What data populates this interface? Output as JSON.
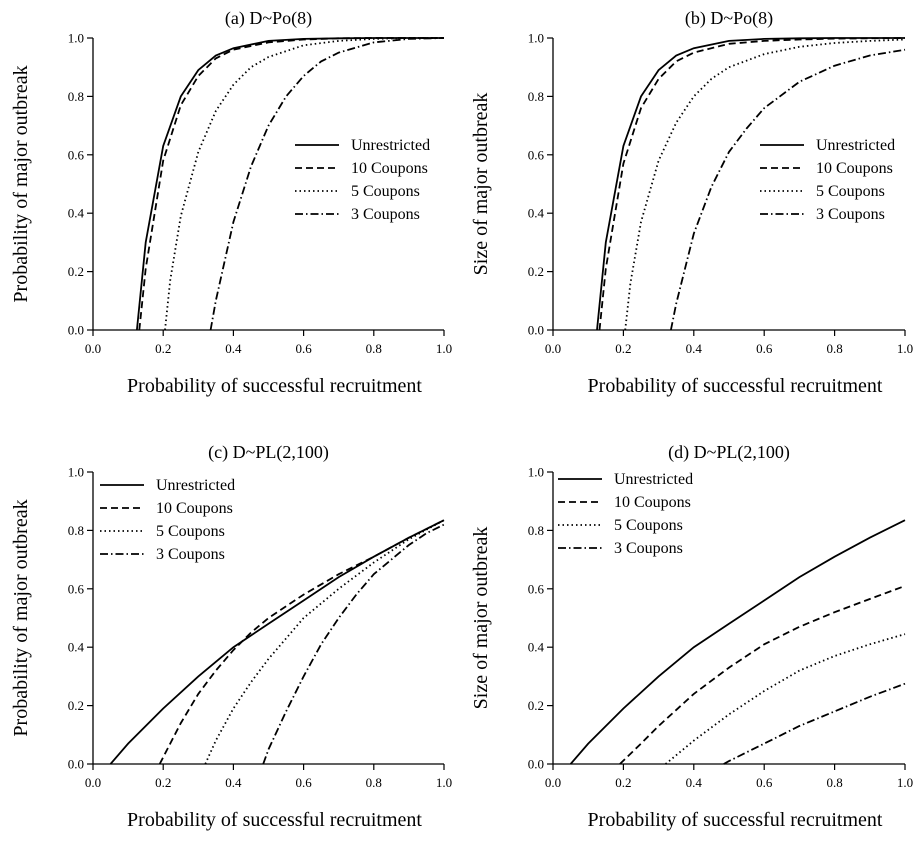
{
  "chart_data": [
    {
      "type": "line",
      "title": "(a) D~Po(8)",
      "xlabel": "Probability of successful recruitment",
      "ylabel": "Probability of major outbreak",
      "xlim": [
        0,
        1
      ],
      "ylim": [
        0,
        1
      ],
      "xticks": [
        "0.0",
        "0.2",
        "0.4",
        "0.6",
        "0.8",
        "1.0"
      ],
      "yticks": [
        "0.0",
        "0.2",
        "0.4",
        "0.6",
        "0.8",
        "1.0"
      ],
      "grid": false,
      "legend": "right",
      "series": [
        {
          "name": "Unrestricted",
          "dash": "solid",
          "x": [
            0.125,
            0.15,
            0.2,
            0.25,
            0.3,
            0.35,
            0.4,
            0.5,
            0.6,
            0.7,
            0.8,
            0.9,
            1.0
          ],
          "y": [
            0,
            0.3,
            0.63,
            0.8,
            0.89,
            0.94,
            0.965,
            0.99,
            0.997,
            0.999,
            1,
            1,
            1
          ]
        },
        {
          "name": "10 Coupons",
          "dash": "dashed",
          "x": [
            0.132,
            0.15,
            0.2,
            0.25,
            0.3,
            0.35,
            0.4,
            0.5,
            0.6,
            0.7,
            0.8,
            0.9,
            1.0
          ],
          "y": [
            0,
            0.21,
            0.58,
            0.77,
            0.87,
            0.93,
            0.96,
            0.985,
            0.995,
            0.999,
            1,
            1,
            1
          ]
        },
        {
          "name": "5 Coupons",
          "dash": "dotted",
          "x": [
            0.205,
            0.22,
            0.25,
            0.3,
            0.35,
            0.4,
            0.45,
            0.5,
            0.6,
            0.7,
            0.8,
            0.9,
            1.0
          ],
          "y": [
            0,
            0.17,
            0.39,
            0.61,
            0.75,
            0.84,
            0.9,
            0.935,
            0.975,
            0.99,
            0.997,
            1,
            1
          ]
        },
        {
          "name": "3 Coupons",
          "dash": "dashdot",
          "x": [
            0.335,
            0.35,
            0.4,
            0.45,
            0.5,
            0.55,
            0.6,
            0.65,
            0.7,
            0.8,
            0.9,
            1.0
          ],
          "y": [
            0,
            0.1,
            0.37,
            0.56,
            0.7,
            0.8,
            0.87,
            0.92,
            0.95,
            0.985,
            0.997,
            1
          ]
        }
      ]
    },
    {
      "type": "line",
      "title": "(b) D~Po(8)",
      "xlabel": "Probability of successful recruitment",
      "ylabel": "Size of major outbreak",
      "xlim": [
        0,
        1
      ],
      "ylim": [
        0,
        1
      ],
      "xticks": [
        "0.0",
        "0.2",
        "0.4",
        "0.6",
        "0.8",
        "1.0"
      ],
      "yticks": [
        "0.0",
        "0.2",
        "0.4",
        "0.6",
        "0.8",
        "1.0"
      ],
      "grid": false,
      "legend": "right",
      "series": [
        {
          "name": "Unrestricted",
          "dash": "solid",
          "x": [
            0.125,
            0.15,
            0.2,
            0.25,
            0.3,
            0.35,
            0.4,
            0.5,
            0.6,
            0.7,
            0.8,
            0.9,
            1.0
          ],
          "y": [
            0,
            0.3,
            0.63,
            0.8,
            0.89,
            0.94,
            0.965,
            0.99,
            0.997,
            0.999,
            1,
            1,
            1
          ]
        },
        {
          "name": "10 Coupons",
          "dash": "dashed",
          "x": [
            0.132,
            0.15,
            0.2,
            0.25,
            0.3,
            0.35,
            0.4,
            0.5,
            0.6,
            0.7,
            0.8,
            0.9,
            1.0
          ],
          "y": [
            0,
            0.21,
            0.57,
            0.76,
            0.86,
            0.92,
            0.95,
            0.98,
            0.99,
            0.995,
            0.998,
            0.999,
            1.0
          ]
        },
        {
          "name": "5 Coupons",
          "dash": "dotted",
          "x": [
            0.205,
            0.22,
            0.25,
            0.3,
            0.35,
            0.4,
            0.45,
            0.5,
            0.6,
            0.7,
            0.8,
            0.9,
            1.0
          ],
          "y": [
            0,
            0.16,
            0.37,
            0.58,
            0.71,
            0.8,
            0.86,
            0.9,
            0.945,
            0.97,
            0.983,
            0.99,
            0.995
          ]
        },
        {
          "name": "3 Coupons",
          "dash": "dashdot",
          "x": [
            0.335,
            0.35,
            0.4,
            0.45,
            0.5,
            0.55,
            0.6,
            0.7,
            0.8,
            0.9,
            1.0
          ],
          "y": [
            0,
            0.09,
            0.33,
            0.49,
            0.61,
            0.69,
            0.76,
            0.85,
            0.905,
            0.94,
            0.96
          ]
        }
      ]
    },
    {
      "type": "line",
      "title": "(c) D~PL(2,100)",
      "xlabel": "Probability of successful recruitment",
      "ylabel": "Probability of major outbreak",
      "xlim": [
        0,
        1
      ],
      "ylim": [
        0,
        1
      ],
      "xticks": [
        "0.0",
        "0.2",
        "0.4",
        "0.6",
        "0.8",
        "1.0"
      ],
      "yticks": [
        "0.0",
        "0.2",
        "0.4",
        "0.6",
        "0.8",
        "1.0"
      ],
      "grid": false,
      "legend": "top-left",
      "series": [
        {
          "name": "Unrestricted",
          "dash": "solid",
          "x": [
            0.05,
            0.1,
            0.2,
            0.3,
            0.4,
            0.5,
            0.6,
            0.7,
            0.8,
            0.9,
            1.0
          ],
          "y": [
            0,
            0.07,
            0.19,
            0.3,
            0.4,
            0.48,
            0.56,
            0.64,
            0.71,
            0.775,
            0.835
          ]
        },
        {
          "name": "10 Coupons",
          "dash": "dashed",
          "x": [
            0.19,
            0.22,
            0.25,
            0.3,
            0.35,
            0.4,
            0.45,
            0.5,
            0.6,
            0.7,
            0.8,
            0.9,
            1.0
          ],
          "y": [
            0,
            0.07,
            0.14,
            0.24,
            0.32,
            0.39,
            0.45,
            0.5,
            0.58,
            0.65,
            0.71,
            0.775,
            0.835
          ]
        },
        {
          "name": "5 Coupons",
          "dash": "dotted",
          "x": [
            0.32,
            0.35,
            0.4,
            0.45,
            0.5,
            0.55,
            0.6,
            0.7,
            0.8,
            0.9,
            1.0
          ],
          "y": [
            0,
            0.08,
            0.19,
            0.28,
            0.36,
            0.43,
            0.5,
            0.6,
            0.69,
            0.77,
            0.835
          ]
        },
        {
          "name": "3 Coupons",
          "dash": "dashdot",
          "x": [
            0.485,
            0.5,
            0.55,
            0.6,
            0.65,
            0.7,
            0.75,
            0.8,
            0.85,
            0.9,
            0.95,
            1.0
          ],
          "y": [
            0,
            0.05,
            0.18,
            0.3,
            0.41,
            0.5,
            0.58,
            0.65,
            0.7,
            0.75,
            0.79,
            0.82
          ]
        }
      ]
    },
    {
      "type": "line",
      "title": "(d) D~PL(2,100)",
      "xlabel": "Probability of successful recruitment",
      "ylabel": "Size of major outbreak",
      "xlim": [
        0,
        1
      ],
      "ylim": [
        0,
        1
      ],
      "xticks": [
        "0.0",
        "0.2",
        "0.4",
        "0.6",
        "0.8",
        "1.0"
      ],
      "yticks": [
        "0.0",
        "0.2",
        "0.4",
        "0.6",
        "0.8",
        "1.0"
      ],
      "grid": false,
      "legend": "top-left",
      "series": [
        {
          "name": "Unrestricted",
          "dash": "solid",
          "x": [
            0.05,
            0.1,
            0.2,
            0.3,
            0.4,
            0.5,
            0.6,
            0.7,
            0.8,
            0.9,
            1.0
          ],
          "y": [
            0,
            0.07,
            0.19,
            0.3,
            0.4,
            0.48,
            0.56,
            0.64,
            0.71,
            0.775,
            0.835
          ]
        },
        {
          "name": "10 Coupons",
          "dash": "dashed",
          "x": [
            0.19,
            0.25,
            0.3,
            0.4,
            0.5,
            0.6,
            0.7,
            0.8,
            0.9,
            1.0
          ],
          "y": [
            0,
            0.07,
            0.13,
            0.24,
            0.33,
            0.41,
            0.47,
            0.52,
            0.565,
            0.61
          ]
        },
        {
          "name": "5 Coupons",
          "dash": "dotted",
          "x": [
            0.32,
            0.35,
            0.4,
            0.5,
            0.6,
            0.7,
            0.8,
            0.9,
            1.0
          ],
          "y": [
            0,
            0.03,
            0.08,
            0.17,
            0.25,
            0.32,
            0.37,
            0.41,
            0.445
          ]
        },
        {
          "name": "3 Coupons",
          "dash": "dashdot",
          "x": [
            0.485,
            0.5,
            0.55,
            0.6,
            0.7,
            0.8,
            0.9,
            1.0
          ],
          "y": [
            0,
            0.01,
            0.04,
            0.07,
            0.13,
            0.18,
            0.23,
            0.275
          ]
        }
      ]
    }
  ]
}
